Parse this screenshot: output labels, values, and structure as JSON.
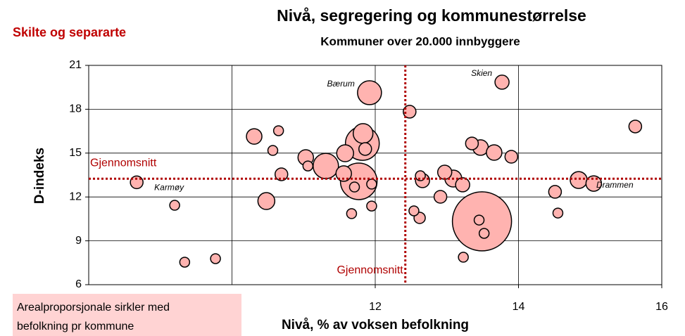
{
  "chart_data": {
    "type": "scatter",
    "title": "Nivå, segregering og kommunestørrelse",
    "subtitle": "Kommuner over 20.000 innbyggere",
    "corner_label": "Skilte og separarte",
    "x_label": "Nivå, % av voksen befolkning",
    "y_label": "D-indeks",
    "note": [
      "Arealproporsjonale sirkler med",
      "befolkning pr kommune"
    ],
    "xlim": [
      8,
      16
    ],
    "xticks": [
      12,
      14,
      16
    ],
    "xgrid": [
      10,
      12,
      14
    ],
    "ylim": [
      6,
      21
    ],
    "yticks": [
      6,
      9,
      12,
      15,
      18,
      21
    ],
    "grid": true,
    "color": "#ffb3b0",
    "mean_x": {
      "value": 12.42,
      "label": "Gjennomsnitt"
    },
    "mean_y": {
      "value": 13.25,
      "label": "Gjennomsnitt"
    },
    "mean_color": "#b00000",
    "x": [
      8.67,
      9.2,
      9.34,
      9.77,
      10.31,
      10.48,
      10.57,
      10.65,
      10.69,
      11.03,
      11.06,
      11.31,
      11.56,
      11.58,
      11.67,
      11.71,
      11.77,
      11.82,
      11.83,
      11.86,
      11.92,
      11.95,
      11.95,
      12.48,
      12.54,
      12.62,
      12.63,
      12.66,
      12.91,
      12.97,
      13.09,
      13.22,
      13.23,
      13.35,
      13.47,
      13.49,
      13.45,
      13.52,
      13.66,
      13.77,
      13.9,
      14.51,
      14.55,
      14.84,
      15.05,
      15.63
    ],
    "y": [
      13.0,
      11.43,
      7.54,
      7.78,
      16.14,
      11.72,
      15.18,
      16.53,
      13.55,
      14.7,
      14.12,
      14.12,
      13.6,
      14.99,
      10.86,
      12.68,
      13.07,
      15.66,
      16.34,
      15.28,
      19.13,
      12.88,
      11.38,
      17.83,
      11.05,
      10.57,
      13.45,
      13.12,
      12.01,
      13.69,
      13.26,
      12.83,
      7.88,
      15.66,
      15.38,
      10.33,
      10.42,
      9.51,
      15.04,
      19.85,
      14.75,
      12.35,
      10.9,
      13.16,
      12.92,
      16.82
    ],
    "sizes": [
      81,
      49,
      49,
      49,
      121,
      144,
      49,
      49,
      81,
      121,
      49,
      324,
      121,
      144,
      49,
      49,
      676,
      576,
      196,
      81,
      289,
      49,
      49,
      81,
      49,
      64,
      49,
      100,
      81,
      100,
      144,
      100,
      49,
      81,
      121,
      1764,
      49,
      49,
      121,
      100,
      81,
      81,
      49,
      144,
      121,
      81
    ],
    "labels": [
      "Karmøy",
      null,
      null,
      null,
      null,
      null,
      null,
      null,
      null,
      null,
      null,
      null,
      null,
      null,
      null,
      null,
      null,
      null,
      null,
      null,
      "Bærum",
      null,
      null,
      null,
      null,
      null,
      null,
      null,
      null,
      null,
      null,
      null,
      null,
      null,
      null,
      null,
      null,
      null,
      null,
      "Skien",
      null,
      null,
      null,
      "Drammen",
      null,
      null
    ]
  }
}
